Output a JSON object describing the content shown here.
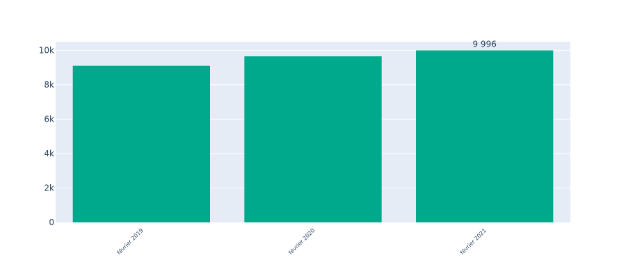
{
  "chart_data": {
    "type": "bar",
    "categories": [
      "février 2019",
      "février 2020",
      "février 2021"
    ],
    "values": [
      9100,
      9650,
      9996
    ],
    "data_labels": [
      "",
      "",
      "9 996"
    ],
    "title": "",
    "xlabel": "",
    "ylabel": "",
    "ylim": [
      0,
      10500
    ],
    "yticks": [
      0,
      2000,
      4000,
      6000,
      8000,
      10000
    ],
    "ytick_labels": [
      "0",
      "2k",
      "4k",
      "6k",
      "8k",
      "10k"
    ],
    "grid": true,
    "colors": {
      "bar": "#00A98B",
      "plot_bg": "#E5ECF6",
      "grid": "#FFFFFF",
      "text": "#2A3F5F"
    }
  }
}
